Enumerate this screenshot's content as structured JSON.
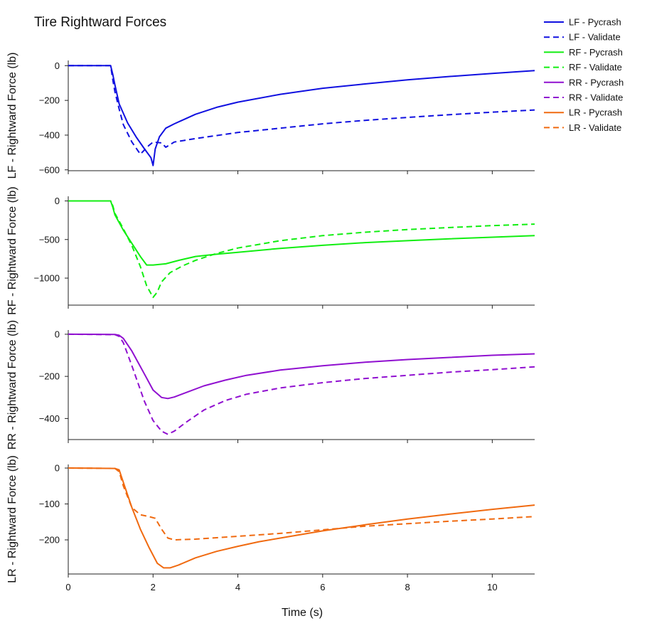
{
  "chart_data": {
    "type": "line",
    "title": "Tire Rightward Forces",
    "xlabel": "Time (s)",
    "xlim": [
      0,
      11
    ],
    "xticks": [
      0,
      2,
      4,
      6,
      8,
      10
    ],
    "grid": false,
    "legend_placement": "top-right, outside plot area",
    "legend": [
      {
        "label": "LF - Pycrash",
        "color": "#1010e0",
        "dash": "solid"
      },
      {
        "label": "LF - Validate",
        "color": "#1010e0",
        "dash": "dashed"
      },
      {
        "label": "RF - Pycrash",
        "color": "#11ee11",
        "dash": "solid"
      },
      {
        "label": "RF - Validate",
        "color": "#11ee11",
        "dash": "dashed"
      },
      {
        "label": "RR - Pycrash",
        "color": "#9010d0",
        "dash": "solid"
      },
      {
        "label": "RR - Validate",
        "color": "#9010d0",
        "dash": "dashed"
      },
      {
        "label": "LR - Pycrash",
        "color": "#f06a10",
        "dash": "solid"
      },
      {
        "label": "LR - Validate",
        "color": "#f06a10",
        "dash": "dashed"
      }
    ],
    "panels": [
      {
        "ylabel": "LF - Rightward Force (lb)",
        "ylim": [
          -605,
          30
        ],
        "yticks": [
          0,
          -200,
          -400,
          -600
        ],
        "series": [
          {
            "name": "LF - Pycrash",
            "color": "#1010e0",
            "dash": "solid",
            "x": [
              0,
              1.0,
              1.05,
              1.1,
              1.2,
              1.4,
              1.6,
              1.8,
              1.95,
              2.0,
              2.05,
              2.15,
              2.3,
              2.5,
              3.0,
              3.5,
              4.0,
              5.0,
              6.0,
              7.0,
              8.0,
              9.0,
              10.0,
              11.0
            ],
            "y": [
              0,
              0,
              -50,
              -110,
              -220,
              -330,
              -410,
              -480,
              -530,
              -575,
              -480,
              -410,
              -360,
              -335,
              -280,
              -240,
              -210,
              -165,
              -130,
              -105,
              -82,
              -62,
              -45,
              -28
            ]
          },
          {
            "name": "LF - Validate",
            "color": "#1010e0",
            "dash": "dashed",
            "x": [
              0,
              1.0,
              1.05,
              1.1,
              1.2,
              1.3,
              1.5,
              1.7,
              1.9,
              2.0,
              2.2,
              2.3,
              2.5,
              3.0,
              4.0,
              5.0,
              6.0,
              7.0,
              8.0,
              9.0,
              10.0,
              11.0
            ],
            "y": [
              0,
              0,
              -80,
              -150,
              -250,
              -340,
              -440,
              -510,
              -460,
              -440,
              -445,
              -470,
              -440,
              -420,
              -385,
              -360,
              -335,
              -315,
              -298,
              -282,
              -268,
              -255
            ]
          }
        ]
      },
      {
        "ylabel": "RF - Rightward Force (lb)",
        "ylim": [
          -1350,
          60
        ],
        "yticks": [
          0,
          -500,
          -1000
        ],
        "series": [
          {
            "name": "RF - Pycrash",
            "color": "#11ee11",
            "dash": "solid",
            "x": [
              0,
              1.0,
              1.05,
              1.1,
              1.3,
              1.5,
              1.7,
              1.85,
              2.0,
              2.3,
              2.6,
              3.0,
              3.5,
              4.0,
              5.0,
              6.0,
              7.0,
              8.0,
              9.0,
              10.0,
              11.0
            ],
            "y": [
              0,
              0,
              -80,
              -180,
              -380,
              -550,
              -720,
              -830,
              -830,
              -815,
              -770,
              -720,
              -690,
              -665,
              -615,
              -575,
              -540,
              -515,
              -490,
              -470,
              -450
            ]
          },
          {
            "name": "RF - Validate",
            "color": "#11ee11",
            "dash": "dashed",
            "x": [
              0,
              1.0,
              1.05,
              1.1,
              1.3,
              1.5,
              1.7,
              1.85,
              2.0,
              2.1,
              2.2,
              2.4,
              2.7,
              3.0,
              3.5,
              4.0,
              5.0,
              6.0,
              7.0,
              8.0,
              9.0,
              10.0,
              11.0
            ],
            "y": [
              0,
              0,
              -60,
              -160,
              -360,
              -580,
              -850,
              -1100,
              -1250,
              -1180,
              -1050,
              -930,
              -840,
              -770,
              -680,
              -610,
              -515,
              -450,
              -405,
              -370,
              -345,
              -320,
              -300
            ]
          }
        ]
      },
      {
        "ylabel": "RR - Rightward Force (lb)",
        "ylim": [
          -500,
          20
        ],
        "yticks": [
          0,
          -200,
          -400
        ],
        "series": [
          {
            "name": "RR - Pycrash",
            "color": "#9010d0",
            "dash": "solid",
            "x": [
              0,
              1.1,
              1.2,
              1.3,
              1.5,
              1.8,
              2.0,
              2.2,
              2.35,
              2.5,
              2.8,
              3.2,
              3.7,
              4.2,
              5.0,
              6.0,
              7.0,
              8.0,
              9.0,
              10.0,
              11.0
            ],
            "y": [
              0,
              -1,
              -5,
              -20,
              -80,
              -190,
              -265,
              -300,
              -305,
              -298,
              -275,
              -245,
              -218,
              -195,
              -170,
              -150,
              -133,
              -120,
              -110,
              -100,
              -93
            ]
          },
          {
            "name": "RR - Validate",
            "color": "#9010d0",
            "dash": "dashed",
            "x": [
              0,
              1.1,
              1.2,
              1.3,
              1.5,
              1.8,
              2.0,
              2.2,
              2.35,
              2.5,
              2.8,
              3.2,
              3.7,
              4.2,
              5.0,
              6.0,
              7.0,
              8.0,
              9.0,
              10.0,
              11.0
            ],
            "y": [
              0,
              -2,
              -10,
              -40,
              -150,
              -320,
              -410,
              -460,
              -475,
              -460,
              -415,
              -360,
              -315,
              -285,
              -255,
              -230,
              -210,
              -195,
              -180,
              -168,
              -155
            ]
          }
        ]
      },
      {
        "ylabel": "LR - Rightward Force (lb)",
        "ylim": [
          -295,
          10
        ],
        "yticks": [
          0,
          -100,
          -200
        ],
        "series": [
          {
            "name": "LR - Pycrash",
            "color": "#f06a10",
            "dash": "solid",
            "x": [
              0,
              1.1,
              1.2,
              1.3,
              1.5,
              1.7,
              1.9,
              2.1,
              2.25,
              2.4,
              2.6,
              3.0,
              3.5,
              4.0,
              4.5,
              5.0,
              6.0,
              7.0,
              8.0,
              9.0,
              10.0,
              11.0
            ],
            "y": [
              0,
              -1,
              -5,
              -40,
              -110,
              -170,
              -220,
              -265,
              -278,
              -278,
              -270,
              -250,
              -232,
              -218,
              -205,
              -195,
              -175,
              -158,
              -142,
              -128,
              -115,
              -103
            ]
          },
          {
            "name": "LR - Validate",
            "color": "#f06a10",
            "dash": "dashed",
            "x": [
              0,
              1.1,
              1.2,
              1.3,
              1.5,
              1.7,
              1.9,
              2.05,
              2.2,
              2.35,
              2.5,
              3.0,
              4.0,
              5.0,
              6.0,
              7.0,
              8.0,
              9.0,
              10.0,
              11.0
            ],
            "y": [
              0,
              -1,
              -10,
              -50,
              -110,
              -130,
              -135,
              -140,
              -170,
              -195,
              -200,
              -198,
              -190,
              -182,
              -172,
              -162,
              -155,
              -148,
              -142,
              -135
            ]
          }
        ]
      }
    ]
  }
}
